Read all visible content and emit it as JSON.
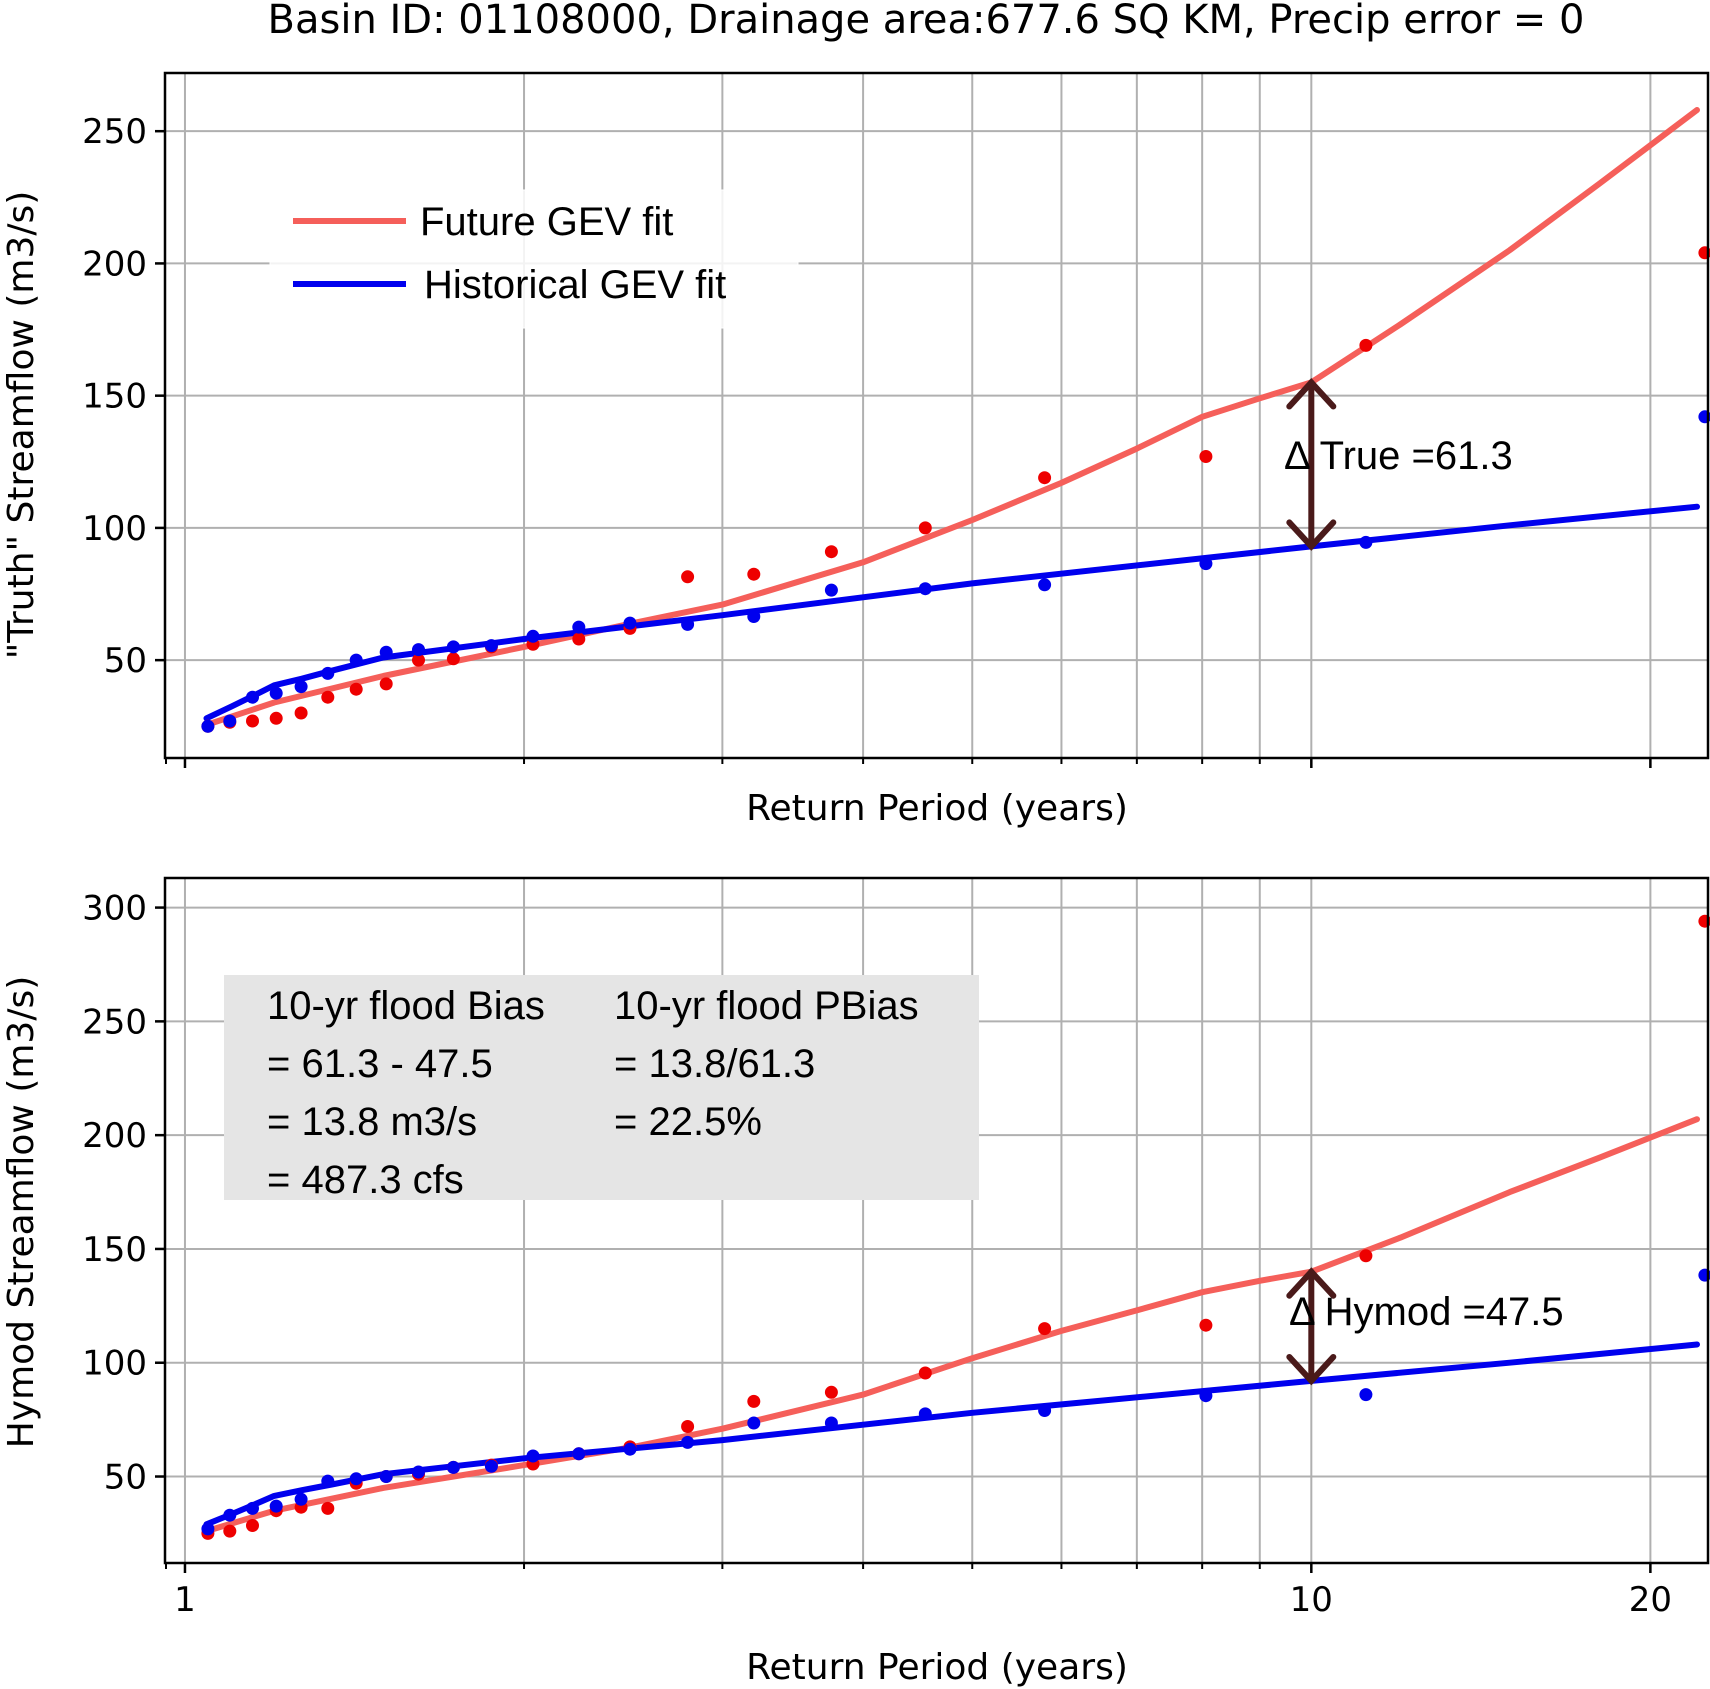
{
  "colors": {
    "future": "#f55f5a",
    "historical": "#0000ee",
    "future_points": "#ee0000",
    "historical_points": "#0000ee",
    "arrow": "#4a1a1a",
    "grid": "#b0b0b0",
    "textbox_bg": "#e5e5e5"
  },
  "chart_data": [
    {
      "type": "line",
      "title": "Basin ID: 01108000, Drainage area:677.6 SQ KM, Precip error = 0",
      "xlabel": "Return Period (years)",
      "ylabel": "\"Truth\" Streamflow (m3/s)",
      "xscale": "log",
      "xlim": [
        0.96,
        22.5
      ],
      "ylim": [
        13,
        272
      ],
      "yticks": [
        50,
        100,
        150,
        200,
        250
      ],
      "xticks": [
        1,
        10,
        20
      ],
      "xtick_labels_shown": false,
      "grid": true,
      "legend": {
        "placement": "upper-left",
        "entries": [
          "Future GEV fit",
          "Historical GEV fit"
        ]
      },
      "series": [
        {
          "name": "Future GEV fit",
          "style": "line",
          "color_key": "future",
          "x": [
            1.045,
            1.2,
            1.5,
            2.0,
            2.5,
            3.0,
            4.0,
            5.0,
            6.0,
            7.0,
            8.0,
            9.0,
            10.0,
            12.0,
            15.0,
            18.0,
            22.0
          ],
          "y": [
            25.5,
            34,
            44,
            55,
            64,
            71,
            87,
            103,
            117,
            130,
            142,
            149,
            155,
            177,
            205,
            230,
            258
          ]
        },
        {
          "name": "Historical GEV fit",
          "style": "line",
          "color_key": "historical",
          "x": [
            1.045,
            1.1,
            1.15,
            1.2,
            1.27,
            1.35,
            1.5,
            2.0,
            3.0,
            5.0,
            10.0,
            15.0,
            22.0
          ],
          "y": [
            28,
            32.5,
            36.5,
            40.5,
            43,
            46,
            51,
            58,
            67,
            79,
            93,
            101,
            108
          ]
        },
        {
          "style": "scatter",
          "color_key": "future_points",
          "x": [
            1.048,
            1.096,
            1.148,
            1.205,
            1.268,
            1.339,
            1.419,
            1.509,
            1.612,
            1.731,
            1.871,
            2.037,
            2.237,
            2.484,
            2.794,
            3.199,
            3.749,
            4.542,
            5.797,
            8.062,
            11.18,
            22.36
          ],
          "y": [
            25,
            26.5,
            27,
            28,
            30,
            36,
            39,
            41,
            50,
            50.5,
            55,
            56,
            58,
            62,
            81.5,
            82.5,
            91,
            100,
            119,
            127,
            169,
            204
          ]
        },
        {
          "style": "scatter",
          "color_key": "historical_points",
          "x": [
            1.048,
            1.096,
            1.148,
            1.205,
            1.268,
            1.339,
            1.419,
            1.509,
            1.612,
            1.731,
            1.871,
            2.037,
            2.237,
            2.484,
            2.794,
            3.199,
            3.749,
            4.542,
            5.797,
            8.062,
            11.18,
            22.36
          ],
          "y": [
            25,
            27,
            36,
            37.5,
            40,
            45,
            50,
            53,
            54,
            55,
            55.5,
            59,
            62.5,
            64,
            63.5,
            66.5,
            76.5,
            77,
            78.5,
            86.5,
            94.5,
            142
          ]
        }
      ],
      "annotations": [
        {
          "type": "double-arrow",
          "x": 10,
          "y_from": 93,
          "y_to": 155,
          "text": "Δ True =61.3"
        }
      ]
    },
    {
      "type": "line",
      "xlabel": "Return Period (years)",
      "ylabel": "Hymod Streamflow (m3/s)",
      "xscale": "log",
      "xlim": [
        0.96,
        22.5
      ],
      "ylim": [
        12,
        313
      ],
      "yticks": [
        50,
        100,
        150,
        200,
        250,
        300
      ],
      "xticks": [
        1,
        10,
        20
      ],
      "xtick_labels": [
        "1",
        "10",
        "20"
      ],
      "grid": true,
      "series": [
        {
          "name": "Future GEV fit",
          "style": "line",
          "color_key": "future",
          "x": [
            1.045,
            1.2,
            1.5,
            2.0,
            2.5,
            3.0,
            4.0,
            5.0,
            6.0,
            7.0,
            8.0,
            9.0,
            10.0,
            12.0,
            15.0,
            18.0,
            22.0
          ],
          "y": [
            26,
            35,
            45,
            55,
            63,
            71,
            86,
            102,
            114,
            123,
            131,
            136,
            140,
            155,
            175,
            190,
            207
          ]
        },
        {
          "name": "Historical GEV fit",
          "style": "line",
          "color_key": "historical",
          "x": [
            1.045,
            1.1,
            1.15,
            1.2,
            1.27,
            1.35,
            1.5,
            2.0,
            3.0,
            5.0,
            10.0,
            15.0,
            22.0
          ],
          "y": [
            29,
            33.5,
            37.5,
            41.5,
            44,
            46.5,
            51,
            58,
            66,
            78,
            92,
            100,
            108
          ]
        },
        {
          "style": "scatter",
          "color_key": "future_points",
          "x": [
            1.048,
            1.096,
            1.148,
            1.205,
            1.268,
            1.339,
            1.419,
            1.509,
            1.612,
            1.731,
            1.871,
            2.037,
            2.237,
            2.484,
            2.794,
            3.199,
            3.749,
            4.542,
            5.797,
            8.062,
            11.18,
            22.36
          ],
          "y": [
            25,
            26,
            28.5,
            35,
            36.5,
            36,
            47,
            50,
            51,
            54,
            55,
            55.5,
            60,
            63,
            72,
            83,
            87,
            95.5,
            115,
            116.5,
            147,
            294
          ]
        },
        {
          "style": "scatter",
          "color_key": "historical_points",
          "x": [
            1.048,
            1.096,
            1.148,
            1.205,
            1.268,
            1.339,
            1.419,
            1.509,
            1.612,
            1.731,
            1.871,
            2.037,
            2.237,
            2.484,
            2.794,
            3.199,
            3.749,
            4.542,
            5.797,
            8.062,
            11.18,
            22.36
          ],
          "y": [
            27,
            33,
            36,
            37,
            40,
            48,
            49,
            50,
            52,
            54,
            54.5,
            59,
            60,
            62,
            65,
            73.5,
            73.5,
            77.5,
            79,
            85.5,
            86,
            138.5
          ]
        }
      ],
      "annotations": [
        {
          "type": "double-arrow",
          "x": 10,
          "y_from": 92,
          "y_to": 140,
          "text": "Δ Hymod =47.5"
        }
      ],
      "textbox": {
        "col1": [
          "10-yr flood Bias",
          "= 61.3 - 47.5",
          "= 13.8 m3/s",
          "= 487.3 cfs"
        ],
        "col2": [
          "10-yr flood PBias",
          "= 13.8/61.3",
          "= 22.5%"
        ]
      }
    }
  ]
}
